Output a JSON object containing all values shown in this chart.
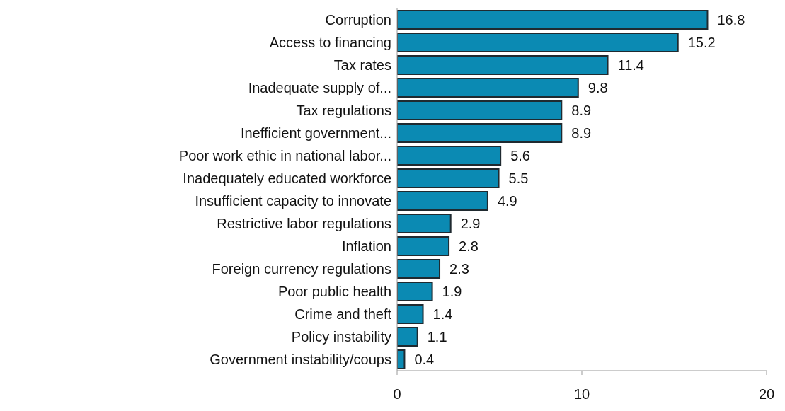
{
  "chart_data": {
    "type": "bar",
    "orientation": "horizontal",
    "categories": [
      "Corruption",
      "Access to financing",
      "Tax rates",
      "Inadequate supply of...",
      "Tax regulations",
      "Inefficient government...",
      "Poor work ethic in national labor...",
      "Inadequately educated workforce",
      "Insufficient capacity to innovate",
      "Restrictive labor regulations",
      "Inflation",
      "Foreign currency regulations",
      "Poor public health",
      "Crime and theft",
      "Policy instability",
      "Government instability/coups"
    ],
    "values": [
      16.8,
      15.2,
      11.4,
      9.8,
      8.9,
      8.9,
      5.6,
      5.5,
      4.9,
      2.9,
      2.8,
      2.3,
      1.9,
      1.4,
      1.1,
      0.4
    ],
    "color": "#0b8ab3",
    "xlim": [
      0,
      20
    ],
    "xticks": [
      0,
      10,
      20
    ],
    "data_labels": true,
    "grid": false,
    "legend": false
  }
}
